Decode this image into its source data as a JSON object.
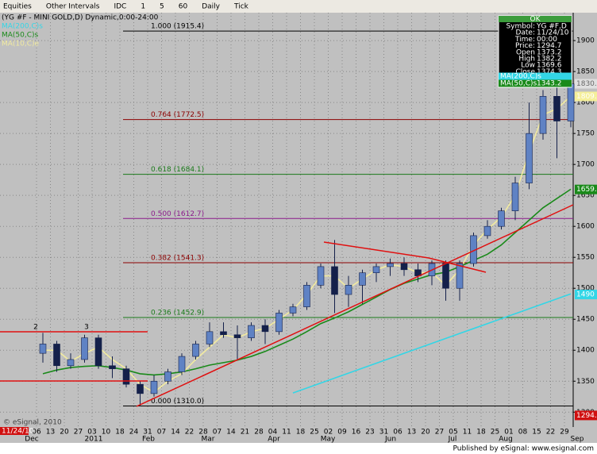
{
  "toolbar": {
    "items": [
      "Equities",
      "Other Intervals",
      "IDC",
      "1",
      "5",
      "60",
      "Daily",
      "Tick"
    ]
  },
  "footer": "Published by eSignal: www.esignal.com",
  "chart_data": {
    "type": "candlestick",
    "title": "(YG #F - MINI GOLD,D) Dynamic,0:00-24:00",
    "copyright": "© eSignal, 2010",
    "cursor_date": "11/24/10",
    "categories": [
      "06",
      "13",
      "20",
      "27",
      "03",
      "10",
      "18",
      "24",
      "31",
      "07",
      "14",
      "22",
      "28",
      "07",
      "14",
      "21",
      "28",
      "04",
      "11",
      "18",
      "25",
      "02",
      "09",
      "16",
      "23",
      "31",
      "06",
      "13",
      "20",
      "27",
      "05",
      "11",
      "18",
      "25",
      "01",
      "08",
      "15",
      "22",
      "29"
    ],
    "months": [
      "Dec",
      "2011",
      "Feb",
      "Mar",
      "Apr",
      "May",
      "Jun",
      "Jul",
      "Aug",
      "Sep"
    ],
    "open": [
      1395,
      1410,
      1375,
      1385,
      1420,
      1375,
      1370,
      1345,
      1330,
      1350,
      1365,
      1390,
      1410,
      1430,
      1425,
      1420,
      1440,
      1430,
      1460,
      1470,
      1505,
      1535,
      1490,
      1505,
      1525,
      1535,
      1540,
      1530,
      1520,
      1540,
      1500,
      1540,
      1585,
      1600,
      1625,
      1670,
      1750,
      1810,
      1770
    ],
    "high": [
      1428,
      1415,
      1395,
      1425,
      1425,
      1390,
      1375,
      1350,
      1360,
      1370,
      1395,
      1415,
      1445,
      1445,
      1440,
      1445,
      1450,
      1465,
      1475,
      1510,
      1540,
      1578,
      1520,
      1530,
      1540,
      1548,
      1550,
      1540,
      1545,
      1545,
      1545,
      1590,
      1610,
      1630,
      1680,
      1800,
      1820,
      1915,
      1860
    ],
    "low": [
      1380,
      1365,
      1370,
      1380,
      1370,
      1355,
      1340,
      1310,
      1325,
      1345,
      1360,
      1385,
      1405,
      1420,
      1385,
      1415,
      1410,
      1425,
      1455,
      1465,
      1500,
      1460,
      1470,
      1475,
      1510,
      1520,
      1520,
      1510,
      1505,
      1480,
      1480,
      1535,
      1580,
      1595,
      1610,
      1660,
      1740,
      1710,
      1760
    ],
    "close": [
      1410,
      1375,
      1385,
      1420,
      1375,
      1370,
      1345,
      1330,
      1350,
      1365,
      1390,
      1410,
      1430,
      1425,
      1420,
      1440,
      1430,
      1460,
      1470,
      1505,
      1535,
      1490,
      1505,
      1525,
      1535,
      1540,
      1530,
      1520,
      1540,
      1500,
      1540,
      1585,
      1600,
      1625,
      1670,
      1750,
      1810,
      1770,
      1830
    ],
    "up_color": "#5f82c4",
    "down_color": "#14204a",
    "series": [
      {
        "name": "MA(200,C)s",
        "color": "#33d6e6",
        "values": [
          null,
          null,
          null,
          null,
          null,
          null,
          null,
          null,
          null,
          null,
          null,
          null,
          null,
          null,
          null,
          null,
          null,
          null,
          1331,
          1339,
          1347,
          1355,
          1363,
          1371,
          1379,
          1387,
          1395,
          1403,
          1411,
          1419,
          1427,
          1435,
          1443,
          1451,
          1459,
          1467,
          1475,
          1483,
          1491
        ]
      },
      {
        "name": "MA(50,C)s",
        "color": "#1a8a1a",
        "values": [
          1362,
          1368,
          1372,
          1374,
          1375,
          1372,
          1368,
          1362,
          1360,
          1362,
          1365,
          1370,
          1376,
          1380,
          1384,
          1390,
          1398,
          1408,
          1418,
          1430,
          1443,
          1452,
          1462,
          1474,
          1486,
          1498,
          1508,
          1515,
          1522,
          1526,
          1535,
          1545,
          1555,
          1570,
          1590,
          1610,
          1630,
          1645,
          1660
        ]
      },
      {
        "name": "MA(10,C)e",
        "color": "#f2eba0",
        "values": [
          1400,
          1400,
          1382,
          1395,
          1405,
          1385,
          1370,
          1345,
          1332,
          1350,
          1362,
          1385,
          1405,
          1425,
          1420,
          1430,
          1435,
          1450,
          1465,
          1490,
          1520,
          1520,
          1500,
          1515,
          1530,
          1538,
          1535,
          1525,
          1525,
          1505,
          1530,
          1570,
          1595,
          1615,
          1650,
          1720,
          1780,
          1790,
          1810
        ]
      }
    ],
    "fib_levels": [
      {
        "label": "1.000 (1915.4)",
        "value": 1915.4,
        "color": "#000000"
      },
      {
        "label": "0.764 (1772.5)",
        "value": 1772.5,
        "color": "#8b0000"
      },
      {
        "label": "0.618 (1684.1)",
        "value": 1684.1,
        "color": "#1a7a1a"
      },
      {
        "label": "0.500 (1612.7)",
        "value": 1612.7,
        "color": "#8b1a8b"
      },
      {
        "label": "0.382 (1541.3)",
        "value": 1541.3,
        "color": "#8b0000"
      },
      {
        "label": "0.236 (1452.9)",
        "value": 1452.9,
        "color": "#1a7a1a"
      },
      {
        "label": "0.000 (1310.0)",
        "value": 1310.0,
        "color": "#000000"
      }
    ],
    "peak_labels": [
      "2",
      "3"
    ],
    "price_markers": [
      {
        "value": 1830.2,
        "color": "#e0e0e0"
      },
      {
        "value": 1809.8,
        "color": "#f5ef9a"
      },
      {
        "value": 1659.6,
        "color": "#1a8a1a"
      },
      {
        "value": 1490,
        "color": "#33d6e6"
      },
      {
        "value": 1294.7,
        "color": "#d01010"
      }
    ],
    "ylim": [
      1276,
      1945
    ],
    "yticks": [
      1300,
      1350,
      1400,
      1450,
      1500,
      1550,
      1600,
      1650,
      1700,
      1750,
      1800,
      1850,
      1900
    ],
    "grid": true,
    "data_window": {
      "header": "OK",
      "rows": [
        [
          "Symbol:",
          "YG #F,D"
        ],
        [
          "Date:",
          "11/24/10"
        ],
        [
          "Time:",
          "00:00"
        ],
        [
          "Price:",
          1294.7
        ],
        [
          "Open",
          1373.2
        ],
        [
          "High",
          1382.2
        ],
        [
          "Low",
          1369.6
        ],
        [
          "Close",
          1374.3
        ]
      ],
      "ma_rows": [
        [
          "MA(200,C)s",
          "#33d6e6"
        ],
        [
          "MA(50,C)s",
          "#1a8a1a",
          1343.2
        ]
      ]
    }
  }
}
